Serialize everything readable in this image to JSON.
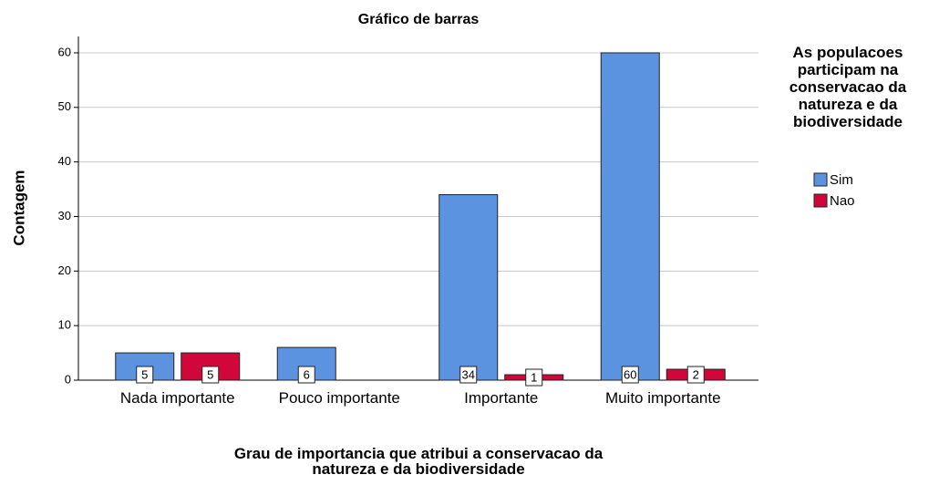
{
  "chart_data": {
    "type": "bar",
    "title": "Gráfico de barras",
    "x_label": "Grau de importancia que atribui a conservacao da natureza e da biodiversidade",
    "y_label": "Contagem",
    "categories": [
      "Nada importante",
      "Pouco importante",
      "Importante",
      "Muito importante"
    ],
    "legend_title": "As populacoes participam na conservacao da natureza e da biodiversidade",
    "legend_position": "right",
    "series": [
      {
        "name": "Sim",
        "color": "#5b93e0",
        "values": [
          5,
          6,
          34,
          60
        ]
      },
      {
        "name": "Nao",
        "color": "#d1063a",
        "values": [
          5,
          null,
          1,
          2
        ]
      }
    ],
    "ylim": [
      0,
      63
    ],
    "yticks": [
      0,
      10,
      20,
      30,
      40,
      50,
      60
    ],
    "grid": true
  }
}
